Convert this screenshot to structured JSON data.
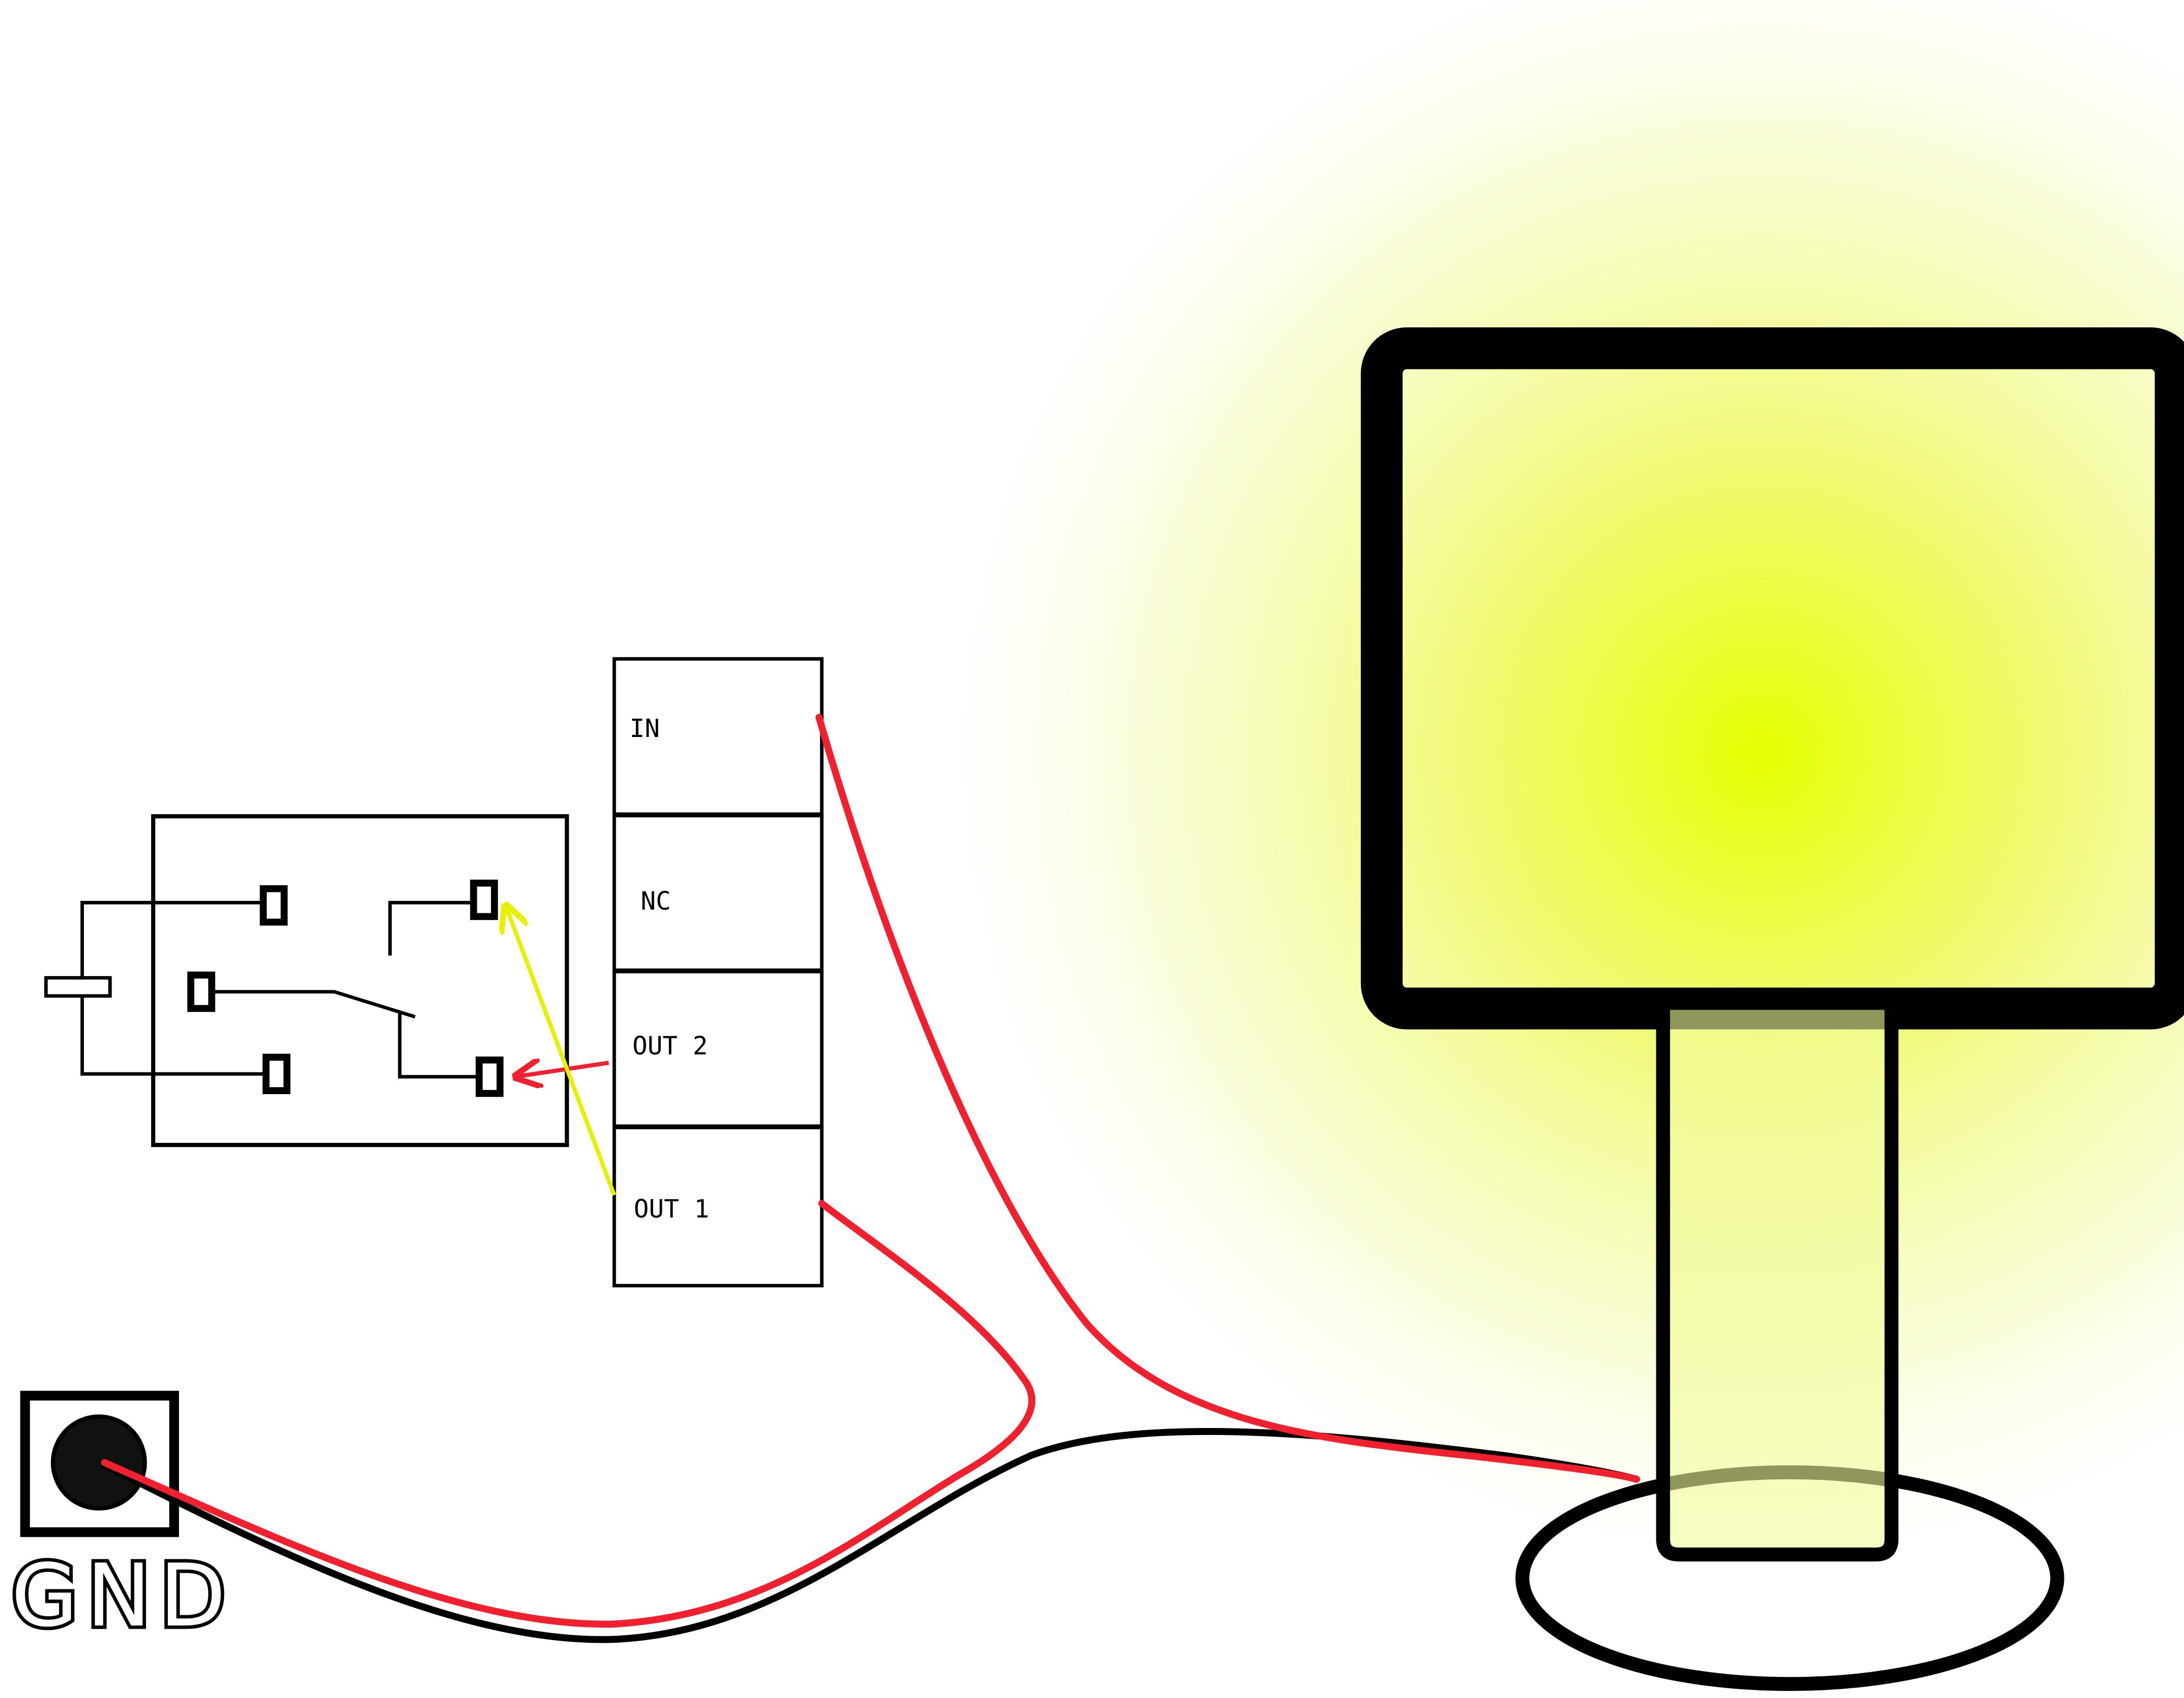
{
  "terminal_block": {
    "labels": [
      "IN",
      "NC",
      "OUT 2",
      "OUT 1"
    ]
  },
  "ground": {
    "label": "GND"
  },
  "colors": {
    "wire_red": "#f0202e",
    "wire_black": "#000000",
    "signal_yellow": "#e6f000",
    "glow_center": "#e6ff00",
    "outline": "#000000"
  },
  "icons": {
    "relay": "relay-switch-icon",
    "lamp": "lamp-icon",
    "ground": "ground-socket-icon"
  }
}
